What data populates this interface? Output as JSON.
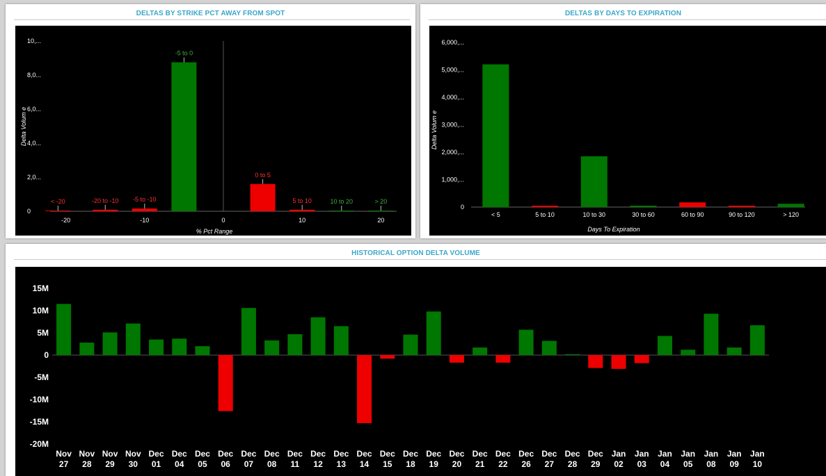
{
  "panels": {
    "strike": {
      "title": "DELTAS BY STRIKE PCT AWAY FROM SPOT"
    },
    "days": {
      "title": "DELTAS BY DAYS TO EXPIRATION"
    },
    "history": {
      "title": "HISTORICAL OPTION DELTA VOLUME"
    }
  },
  "colors": {
    "positive": "#007700",
    "negative": "#ee0000",
    "positive_label": "#3fae3f",
    "negative_label": "#ff3030",
    "axis_text": "#ffffff",
    "title": "#3aa7c8"
  },
  "chart_data": [
    {
      "id": "strike",
      "type": "bar",
      "xlabel": "% Pct Range",
      "ylabel": "Delta Volum e",
      "x_ticks": [
        "-20",
        "-10",
        "0",
        "10",
        "20"
      ],
      "x_tick_values": [
        -20,
        -10,
        0,
        10,
        20
      ],
      "xlim": [
        -22,
        22
      ],
      "y_ticks": [
        "0",
        "2,0...",
        "4,0...",
        "6,0...",
        "8,0...",
        "10,..."
      ],
      "y_tick_values": [
        0,
        2000,
        4000,
        6000,
        8000,
        10000
      ],
      "ylim": [
        0,
        10000
      ],
      "bars": [
        {
          "label": "< -20",
          "x": -21,
          "value": 30,
          "sign": "negative"
        },
        {
          "label": "-20 to -10",
          "x": -15,
          "value": 90,
          "sign": "negative"
        },
        {
          "label": "-5 to -10",
          "x": -10,
          "value": 160,
          "sign": "negative"
        },
        {
          "label": "-5 to 0",
          "x": -5,
          "value": 8750,
          "sign": "positive"
        },
        {
          "label": "0 to 5",
          "x": 5,
          "value": 1600,
          "sign": "negative"
        },
        {
          "label": "5 to 10",
          "x": 10,
          "value": 90,
          "sign": "negative"
        },
        {
          "label": "10 to 20",
          "x": 15,
          "value": 25,
          "sign": "positive"
        },
        {
          "label": "> 20",
          "x": 20,
          "value": 20,
          "sign": "positive"
        }
      ]
    },
    {
      "id": "days",
      "type": "bar",
      "xlabel": "Days To Expiration",
      "ylabel": "Delta Volum e",
      "categories": [
        "< 5",
        "5 to 10",
        "10 to 30",
        "30 to 60",
        "60 to 90",
        "90 to 120",
        "> 120"
      ],
      "values": [
        5200,
        20,
        1850,
        50,
        170,
        50,
        120
      ],
      "signs": [
        "positive",
        "negative",
        "positive",
        "positive",
        "negative",
        "negative",
        "positive"
      ],
      "y_ticks": [
        "0",
        "1,000,...",
        "2,000,...",
        "3,000,...",
        "4,000,...",
        "5,000,...",
        "6,000,..."
      ],
      "y_tick_values": [
        0,
        1000,
        2000,
        3000,
        4000,
        5000,
        6000
      ],
      "ylim": [
        0,
        6000
      ]
    },
    {
      "id": "history",
      "type": "bar",
      "categories": [
        [
          "Nov",
          "27"
        ],
        [
          "Nov",
          "28"
        ],
        [
          "Nov",
          "29"
        ],
        [
          "Nov",
          "30"
        ],
        [
          "Dec",
          "01"
        ],
        [
          "Dec",
          "04"
        ],
        [
          "Dec",
          "05"
        ],
        [
          "Dec",
          "06"
        ],
        [
          "Dec",
          "07"
        ],
        [
          "Dec",
          "08"
        ],
        [
          "Dec",
          "11"
        ],
        [
          "Dec",
          "12"
        ],
        [
          "Dec",
          "13"
        ],
        [
          "Dec",
          "14"
        ],
        [
          "Dec",
          "15"
        ],
        [
          "Dec",
          "18"
        ],
        [
          "Dec",
          "19"
        ],
        [
          "Dec",
          "20"
        ],
        [
          "Dec",
          "21"
        ],
        [
          "Dec",
          "22"
        ],
        [
          "Dec",
          "26"
        ],
        [
          "Dec",
          "27"
        ],
        [
          "Dec",
          "28"
        ],
        [
          "Dec",
          "29"
        ],
        [
          "Jan",
          "02"
        ],
        [
          "Jan",
          "03"
        ],
        [
          "Jan",
          "04"
        ],
        [
          "Jan",
          "05"
        ],
        [
          "Jan",
          "08"
        ],
        [
          "Jan",
          "09"
        ],
        [
          "Jan",
          "10"
        ]
      ],
      "values": [
        11.5,
        2.8,
        5.1,
        7.1,
        3.5,
        3.7,
        2.0,
        -12.6,
        10.6,
        3.3,
        4.7,
        8.5,
        6.5,
        -15.3,
        -0.8,
        4.6,
        9.8,
        -1.7,
        1.7,
        -1.7,
        5.7,
        3.2,
        0.2,
        -2.9,
        -3.1,
        -1.8,
        4.3,
        1.2,
        9.3,
        1.7,
        6.7
      ],
      "y_ticks": [
        "-20M",
        "-15M",
        "-10M",
        "-5M",
        "0",
        "5M",
        "10M",
        "15M"
      ],
      "y_tick_values": [
        -20,
        -15,
        -10,
        -5,
        0,
        5,
        10,
        15
      ],
      "ylim": [
        -20,
        15
      ]
    }
  ]
}
